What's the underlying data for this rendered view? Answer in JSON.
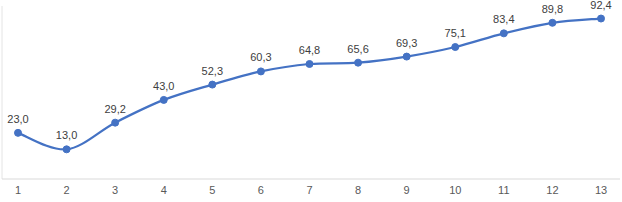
{
  "chart_data": {
    "type": "line",
    "categories": [
      "1",
      "2",
      "3",
      "4",
      "5",
      "6",
      "7",
      "8",
      "9",
      "10",
      "11",
      "12",
      "13"
    ],
    "values": [
      23.0,
      13.0,
      29.2,
      43.0,
      52.3,
      60.3,
      64.8,
      65.6,
      69.3,
      75.1,
      83.4,
      89.8,
      92.4
    ],
    "value_labels": [
      "23,0",
      "13,0",
      "29,2",
      "43,0",
      "52,3",
      "60,3",
      "64,8",
      "65,6",
      "69,3",
      "75,1",
      "83,4",
      "89,8",
      "92,4"
    ],
    "color": "#4472c4",
    "marker": "circle",
    "line_style": "smooth",
    "ylim": [
      -5,
      100
    ],
    "data_labels": true,
    "tick_labels": "x",
    "grid": false
  }
}
